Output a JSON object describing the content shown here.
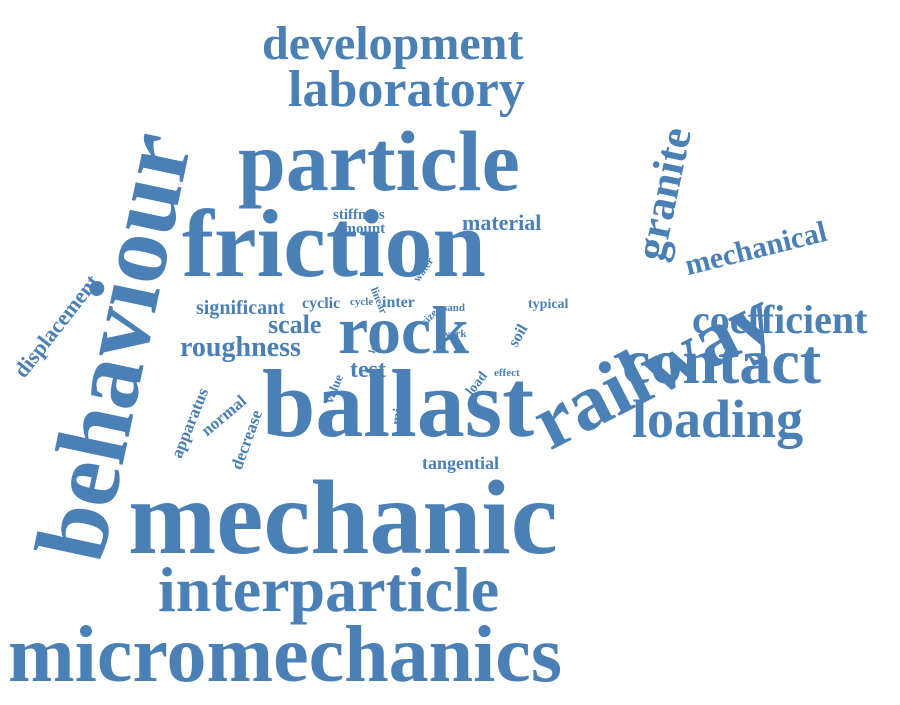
{
  "color": "#4a80b5",
  "words": {
    "micromechanics": "micromechanics",
    "mechanic": "mechanic",
    "interparticle": "interparticle",
    "friction": "friction",
    "ballast": "ballast",
    "behaviour": "behaviour",
    "particle": "particle",
    "railway": "railway",
    "rock": "rock",
    "contact": "contact",
    "loading": "loading",
    "coefficient": "coefficient",
    "laboratory": "laboratory",
    "development": "development",
    "granite": "granite",
    "mechanical": "mechanical",
    "roughness": "roughness",
    "scale": "scale",
    "significant": "significant",
    "displacement": "displacement",
    "material": "material",
    "stiffness": "stiffness",
    "amount": "amount",
    "tangential": "tangential",
    "test": "test",
    "apparatus": "apparatus",
    "normal": "normal",
    "decrease": "decrease",
    "value": "value",
    "micro": "micro",
    "cyclic": "cyclic",
    "cycle": "cycle",
    "inter": "inter",
    "linear": "linear",
    "water": "water",
    "size": "size",
    "sand": "sand",
    "soil": "soil",
    "typical": "typical",
    "work": "work",
    "level": "level",
    "load": "load",
    "effect": "effect"
  }
}
